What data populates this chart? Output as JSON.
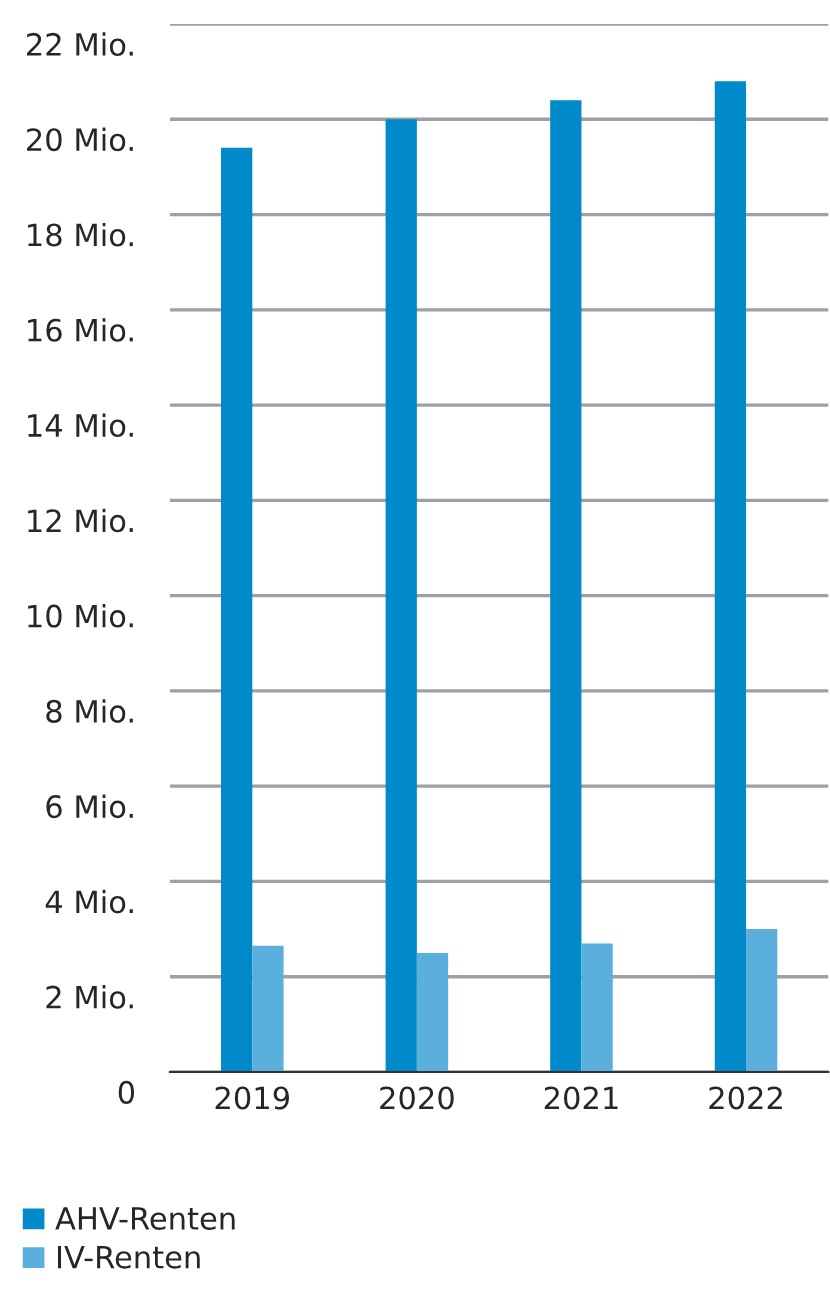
{
  "chart_data": {
    "type": "bar",
    "categories": [
      "2019",
      "2020",
      "2021",
      "2022"
    ],
    "series": [
      {
        "name": "AHV-Renten",
        "color": "#008ac9",
        "values": [
          19.4,
          20.0,
          20.4,
          20.8
        ]
      },
      {
        "name": "IV-Renten",
        "color": "#5bafdc",
        "values": [
          2.65,
          2.5,
          2.7,
          3.0
        ]
      }
    ],
    "ylim": [
      0,
      22
    ],
    "yticks": [
      0,
      {
        "value": 2,
        "label": "2 Mio."
      },
      {
        "value": 4,
        "label": "4 Mio."
      },
      {
        "value": 6,
        "label": "6 Mio."
      },
      {
        "value": 8,
        "label": "8 Mio."
      },
      {
        "value": 10,
        "label": "10 Mio."
      },
      {
        "value": 12,
        "label": "12 Mio."
      },
      {
        "value": 14,
        "label": "14 Mio."
      },
      {
        "value": 16,
        "label": "16 Mio."
      },
      {
        "value": 18,
        "label": "18 Mio."
      },
      {
        "value": 20,
        "label": "20 Mio."
      },
      {
        "value": 22,
        "label": "22 Mio."
      }
    ],
    "grid": "y",
    "legend": "bottom left"
  }
}
